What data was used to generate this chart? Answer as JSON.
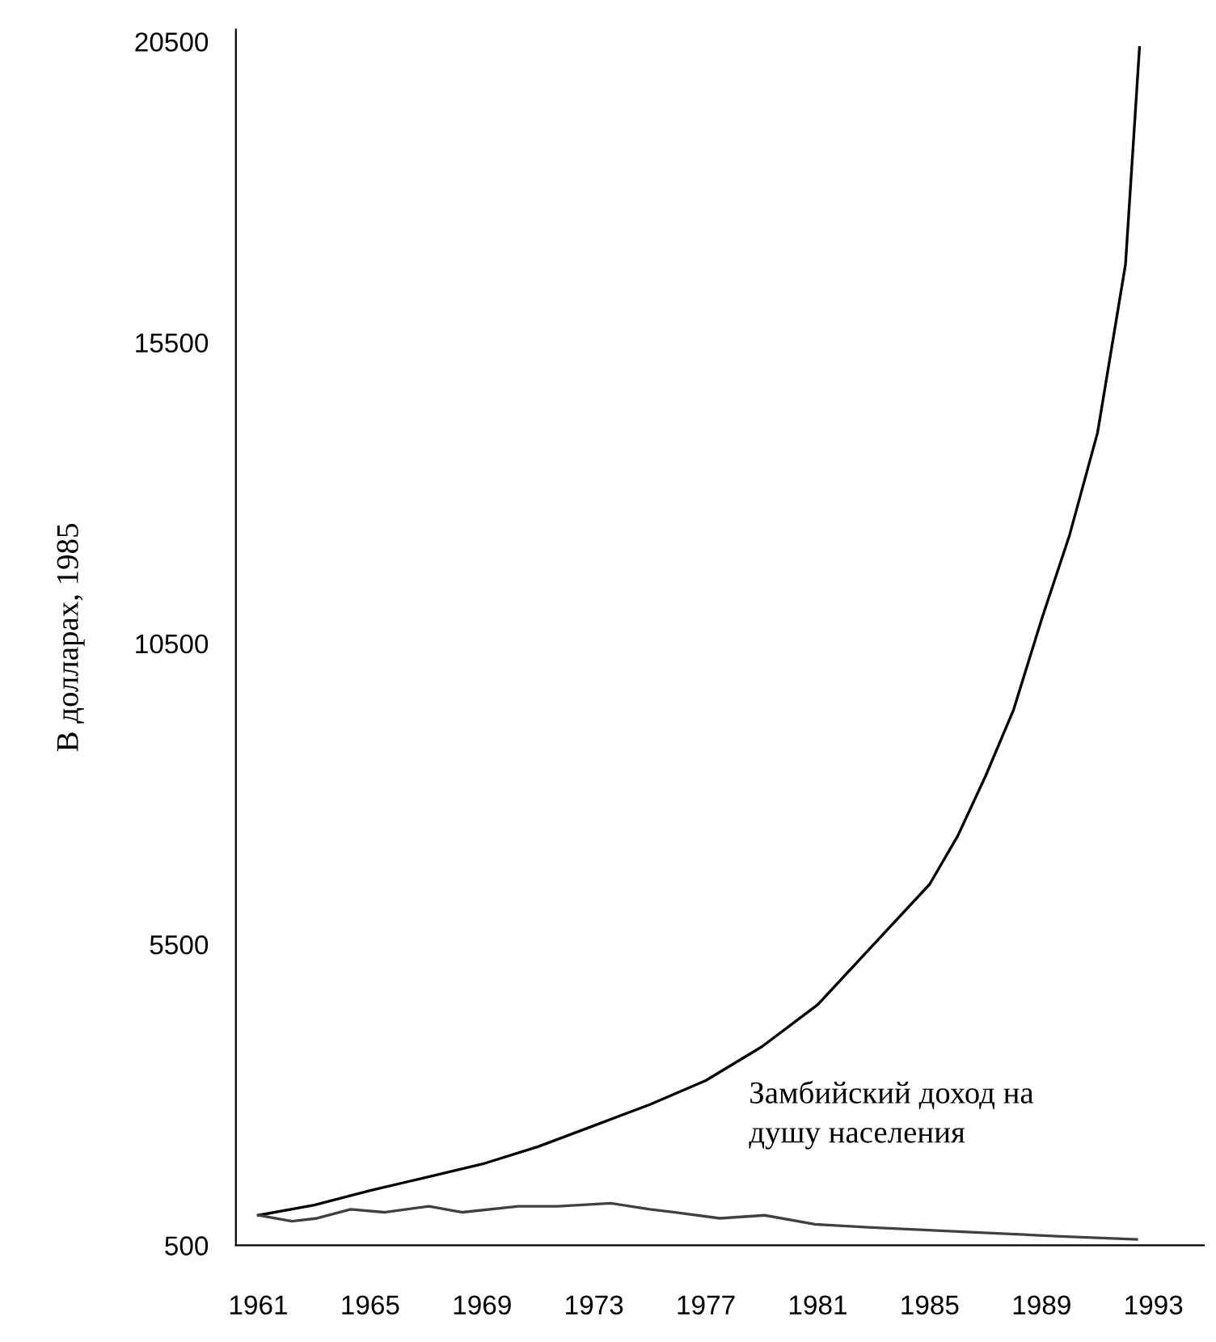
{
  "chart_data": {
    "type": "line",
    "ylabel": "В долларах, 1985",
    "series": [
      {
        "color": "#000000",
        "x": [
          1961,
          1963,
          1965,
          1967,
          1969,
          1971,
          1973,
          1975,
          1977,
          1979,
          1981,
          1983,
          1985,
          1986,
          1987,
          1988,
          1989,
          1990,
          1991,
          1992,
          1992.5
        ],
        "values": [
          1000,
          1170,
          1410,
          1630,
          1850,
          2140,
          2490,
          2840,
          3240,
          3800,
          4500,
          5500,
          6500,
          7300,
          8300,
          9400,
          10900,
          12300,
          14000,
          16800,
          20400
        ]
      },
      {
        "color": "#404040",
        "x": [
          1961,
          1962.2,
          1963.1,
          1964.3,
          1965.5,
          1967.1,
          1968.3,
          1970.3,
          1971.7,
          1973.6,
          1975,
          1975.9,
          1977.5,
          1979.1,
          1980.9,
          1982.8,
          1985.1,
          1987.4,
          1989.7,
          1992.4
        ],
        "values": [
          1000,
          900,
          950,
          1100,
          1050,
          1150,
          1050,
          1150,
          1150,
          1200,
          1100,
          1050,
          950,
          1000,
          850,
          800,
          750,
          700,
          650,
          600
        ]
      }
    ],
    "annotations": [
      "Замбийский доход на\nдушу населения"
    ],
    "xlim": [
      1960.2,
      1994.8
    ],
    "xticks": [
      1961,
      1965,
      1969,
      1973,
      1977,
      1981,
      1985,
      1989,
      1993
    ],
    "ylim": [
      500,
      20700
    ],
    "yticks": [
      500,
      5500,
      10500,
      15500,
      20500
    ],
    "grid": false,
    "marker": "none",
    "line_style": "solid"
  }
}
